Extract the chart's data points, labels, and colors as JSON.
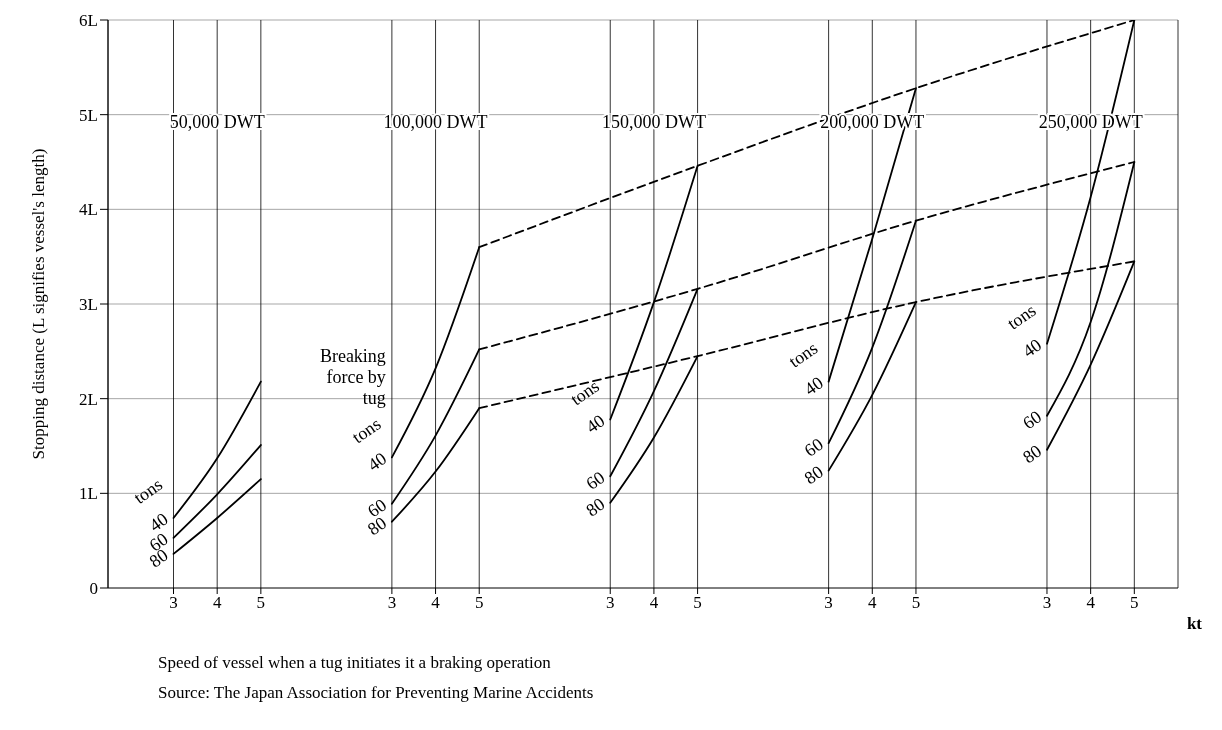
{
  "chart_data": {
    "type": "line",
    "xlabel": "kt",
    "ylabel": "Stopping distance (L signifies vessel's length)",
    "categories": [
      "3",
      "4",
      "5",
      null,
      null,
      "3",
      "4",
      "5",
      null,
      null,
      "3",
      "4",
      "5",
      null,
      null,
      "3",
      "4",
      "5",
      null,
      null,
      "3",
      "4",
      "5"
    ],
    "ylim": [
      0,
      6
    ],
    "yticks": [
      0,
      {
        "value": 1,
        "label": "1L"
      },
      {
        "value": 2,
        "label": "2L"
      },
      {
        "value": 3,
        "label": "3L"
      },
      {
        "value": 4,
        "label": "4L"
      },
      {
        "value": 5,
        "label": "5L"
      },
      {
        "value": 6,
        "label": "6L"
      }
    ],
    "grid": true,
    "legend": false,
    "marker": "none",
    "series": [
      {
        "name": "40",
        "color": "#000000",
        "line_style": "solid",
        "values": [
          0.74,
          1.37,
          2.18,
          null,
          null,
          null,
          null,
          null,
          null,
          null,
          null,
          null,
          null,
          null,
          null,
          null,
          null,
          null,
          null,
          null,
          null,
          null,
          null
        ]
      },
      {
        "name": "60",
        "color": "#000000",
        "line_style": "solid",
        "values": [
          0.53,
          0.99,
          1.51,
          null,
          null,
          null,
          null,
          null,
          null,
          null,
          null,
          null,
          null,
          null,
          null,
          null,
          null,
          null,
          null,
          null,
          null,
          null,
          null
        ]
      },
      {
        "name": "80",
        "color": "#000000",
        "line_style": "solid",
        "values": [
          0.36,
          0.74,
          1.15,
          null,
          null,
          null,
          null,
          null,
          null,
          null,
          null,
          null,
          null,
          null,
          null,
          null,
          null,
          null,
          null,
          null,
          null,
          null,
          null
        ]
      },
      {
        "name": "40",
        "color": "#000000",
        "line_style": "solid",
        "values": [
          null,
          null,
          null,
          null,
          null,
          1.38,
          2.32,
          3.6,
          null,
          null,
          null,
          null,
          null,
          null,
          null,
          null,
          null,
          null,
          null,
          null,
          null,
          null,
          null
        ]
      },
      {
        "name": "60",
        "color": "#000000",
        "line_style": "solid",
        "values": [
          null,
          null,
          null,
          null,
          null,
          0.89,
          1.61,
          2.52,
          null,
          null,
          null,
          null,
          null,
          null,
          null,
          null,
          null,
          null,
          null,
          null,
          null,
          null,
          null
        ]
      },
      {
        "name": "80",
        "color": "#000000",
        "line_style": "solid",
        "values": [
          null,
          null,
          null,
          null,
          null,
          0.7,
          1.23,
          1.9,
          null,
          null,
          null,
          null,
          null,
          null,
          null,
          null,
          null,
          null,
          null,
          null,
          null,
          null,
          null
        ]
      },
      {
        "name": "40",
        "color": "#000000",
        "line_style": "solid",
        "values": [
          null,
          null,
          null,
          null,
          null,
          null,
          null,
          null,
          null,
          null,
          1.78,
          3.02,
          4.46,
          null,
          null,
          null,
          null,
          null,
          null,
          null,
          null,
          null,
          null
        ]
      },
      {
        "name": "60",
        "color": "#000000",
        "line_style": "solid",
        "values": [
          null,
          null,
          null,
          null,
          null,
          null,
          null,
          null,
          null,
          null,
          1.18,
          2.08,
          3.16,
          null,
          null,
          null,
          null,
          null,
          null,
          null,
          null,
          null,
          null
        ]
      },
      {
        "name": "80",
        "color": "#000000",
        "line_style": "solid",
        "values": [
          null,
          null,
          null,
          null,
          null,
          null,
          null,
          null,
          null,
          null,
          0.9,
          1.59,
          2.45,
          null,
          null,
          null,
          null,
          null,
          null,
          null,
          null,
          null,
          null
        ]
      },
      {
        "name": "40",
        "color": "#000000",
        "line_style": "solid",
        "values": [
          null,
          null,
          null,
          null,
          null,
          null,
          null,
          null,
          null,
          null,
          null,
          null,
          null,
          null,
          null,
          2.18,
          3.69,
          5.28,
          null,
          null,
          null,
          null,
          null
        ]
      },
      {
        "name": "60",
        "color": "#000000",
        "line_style": "solid",
        "values": [
          null,
          null,
          null,
          null,
          null,
          null,
          null,
          null,
          null,
          null,
          null,
          null,
          null,
          null,
          null,
          1.53,
          2.54,
          3.88,
          null,
          null,
          null,
          null,
          null
        ]
      },
      {
        "name": "80",
        "color": "#000000",
        "line_style": "solid",
        "values": [
          null,
          null,
          null,
          null,
          null,
          null,
          null,
          null,
          null,
          null,
          null,
          null,
          null,
          null,
          null,
          1.24,
          2.04,
          3.02,
          null,
          null,
          null,
          null,
          null
        ]
      },
      {
        "name": "40",
        "color": "#000000",
        "line_style": "solid",
        "values": [
          null,
          null,
          null,
          null,
          null,
          null,
          null,
          null,
          null,
          null,
          null,
          null,
          null,
          null,
          null,
          null,
          null,
          null,
          null,
          null,
          2.58,
          4.13,
          6.0
        ]
      },
      {
        "name": "60",
        "color": "#000000",
        "line_style": "solid",
        "values": [
          null,
          null,
          null,
          null,
          null,
          null,
          null,
          null,
          null,
          null,
          null,
          null,
          null,
          null,
          null,
          null,
          null,
          null,
          null,
          null,
          1.82,
          2.81,
          4.5
        ]
      },
      {
        "name": "80",
        "color": "#000000",
        "line_style": "solid",
        "values": [
          null,
          null,
          null,
          null,
          null,
          null,
          null,
          null,
          null,
          null,
          null,
          null,
          null,
          null,
          null,
          null,
          null,
          null,
          null,
          null,
          1.46,
          2.36,
          3.45
        ]
      },
      {
        "color": "#000000",
        "line_style": "dashed",
        "values": [
          null,
          null,
          null,
          null,
          null,
          null,
          null,
          3.6,
          null,
          null,
          null,
          null,
          4.46,
          null,
          null,
          null,
          null,
          5.28,
          null,
          null,
          null,
          null,
          6.0
        ]
      },
      {
        "color": "#000000",
        "line_style": "dashed",
        "values": [
          null,
          null,
          null,
          null,
          null,
          null,
          null,
          2.52,
          null,
          null,
          null,
          null,
          3.16,
          null,
          null,
          null,
          null,
          3.88,
          null,
          null,
          null,
          null,
          4.5
        ]
      },
      {
        "color": "#000000",
        "line_style": "dashed",
        "values": [
          null,
          null,
          null,
          null,
          null,
          null,
          null,
          1.9,
          null,
          null,
          null,
          null,
          2.45,
          null,
          null,
          null,
          null,
          3.02,
          null,
          null,
          null,
          null,
          3.45
        ]
      }
    ],
    "annotations": [
      "50,000 DWT",
      "100,000 DWT",
      "150,000 DWT",
      "200,000 DWT",
      "250,000 DWT",
      "tons",
      "tons",
      "tons",
      "tons",
      "tons",
      "Breaking force by tug",
      "Speed of vessel when a tug initiates it a braking operation",
      "Source:  The Japan Association for Preventing Marine Accidents"
    ]
  }
}
